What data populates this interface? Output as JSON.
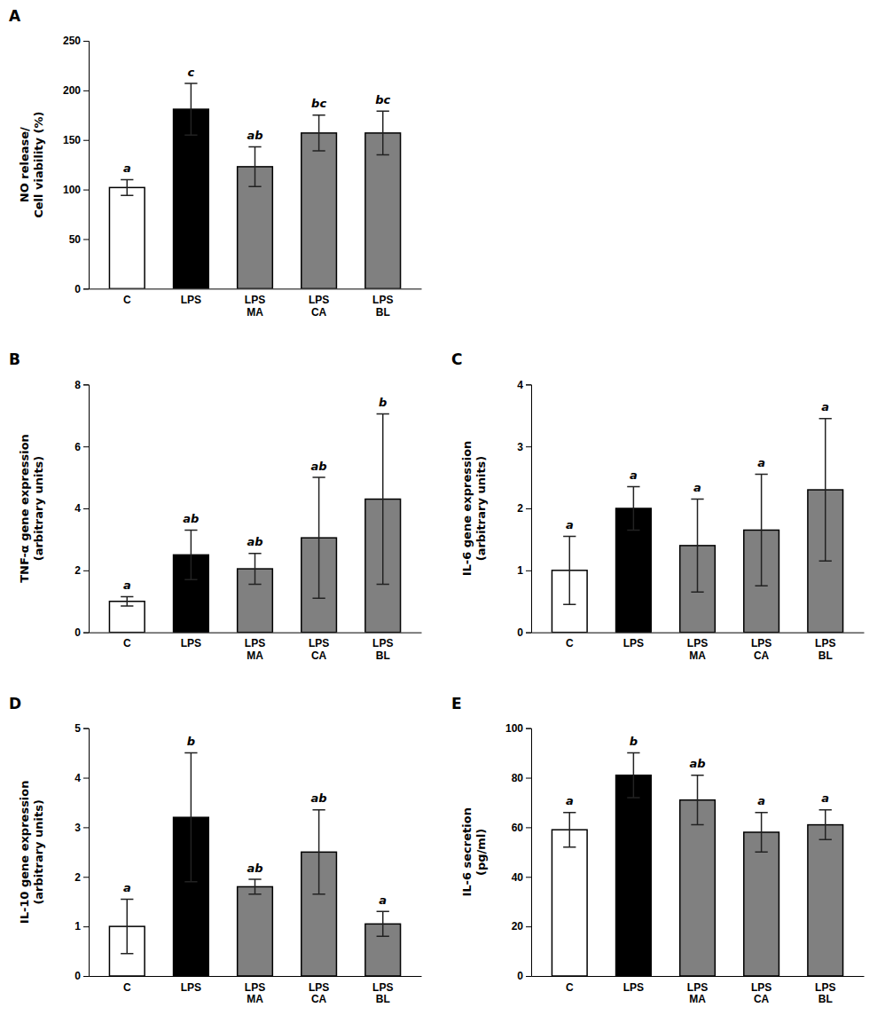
{
  "chart_data": [
    {
      "type": "bar",
      "title": "A",
      "ylabel": "NO release/\nCell viability (%)",
      "categories": [
        "C",
        "LPS",
        "LPS\nMA",
        "LPS\nCA",
        "LPS\nBL"
      ],
      "values": [
        102,
        181,
        123,
        157,
        157
      ],
      "errors": [
        8,
        26,
        20,
        18,
        22
      ],
      "colors": [
        "#ffffff",
        "#000000",
        "#808080",
        "#808080",
        "#808080"
      ],
      "annotations": [
        "a",
        "c",
        "ab",
        "bc",
        "bc"
      ],
      "ylim": [
        0,
        250
      ],
      "yticks": [
        0,
        50,
        100,
        150,
        200,
        250
      ]
    },
    {
      "type": "bar",
      "title": "B",
      "ylabel": "TNF-α gene expression\n(arbitrary units)",
      "categories": [
        "C",
        "LPS",
        "LPS\nMA",
        "LPS\nCA",
        "LPS\nBL"
      ],
      "values": [
        1.0,
        2.5,
        2.05,
        3.05,
        4.3
      ],
      "errors": [
        0.15,
        0.8,
        0.5,
        1.95,
        2.75
      ],
      "colors": [
        "#ffffff",
        "#000000",
        "#808080",
        "#808080",
        "#808080"
      ],
      "annotations": [
        "a",
        "ab",
        "ab",
        "ab",
        "b"
      ],
      "ylim": [
        0,
        8
      ],
      "yticks": [
        0,
        2,
        4,
        6,
        8
      ]
    },
    {
      "type": "bar",
      "title": "C",
      "ylabel": "IL-6 gene expression\n(arbitrary units)",
      "categories": [
        "C",
        "LPS",
        "LPS\nMA",
        "LPS\nCA",
        "LPS\nBL"
      ],
      "values": [
        1.0,
        2.0,
        1.4,
        1.65,
        2.3
      ],
      "errors": [
        0.55,
        0.35,
        0.75,
        0.9,
        1.15
      ],
      "colors": [
        "#ffffff",
        "#000000",
        "#808080",
        "#808080",
        "#808080"
      ],
      "annotations": [
        "a",
        "a",
        "a",
        "a",
        "a"
      ],
      "ylim": [
        0,
        4
      ],
      "yticks": [
        0,
        1,
        2,
        3,
        4
      ]
    },
    {
      "type": "bar",
      "title": "D",
      "ylabel": "IL-10 gene expression\n(arbitrary units)",
      "categories": [
        "C",
        "LPS",
        "LPS\nMA",
        "LPS\nCA",
        "LPS\nBL"
      ],
      "values": [
        1.0,
        3.2,
        1.8,
        2.5,
        1.05
      ],
      "errors": [
        0.55,
        1.3,
        0.15,
        0.85,
        0.25
      ],
      "colors": [
        "#ffffff",
        "#000000",
        "#808080",
        "#808080",
        "#808080"
      ],
      "annotations": [
        "a",
        "b",
        "ab",
        "ab",
        "a"
      ],
      "ylim": [
        0,
        5
      ],
      "yticks": [
        0,
        1,
        2,
        3,
        4,
        5
      ]
    },
    {
      "type": "bar",
      "title": "E",
      "ylabel": "IL-6 secretion\n(pg/ml)",
      "categories": [
        "C",
        "LPS",
        "LPS\nMA",
        "LPS\nCA",
        "LPS\nBL"
      ],
      "values": [
        59,
        81,
        71,
        58,
        61
      ],
      "errors": [
        7,
        9,
        10,
        8,
        6
      ],
      "colors": [
        "#ffffff",
        "#000000",
        "#808080",
        "#808080",
        "#808080"
      ],
      "annotations": [
        "a",
        "b",
        "ab",
        "a",
        "a"
      ],
      "ylim": [
        0,
        100
      ],
      "yticks": [
        0,
        20,
        40,
        60,
        80,
        100
      ]
    }
  ]
}
